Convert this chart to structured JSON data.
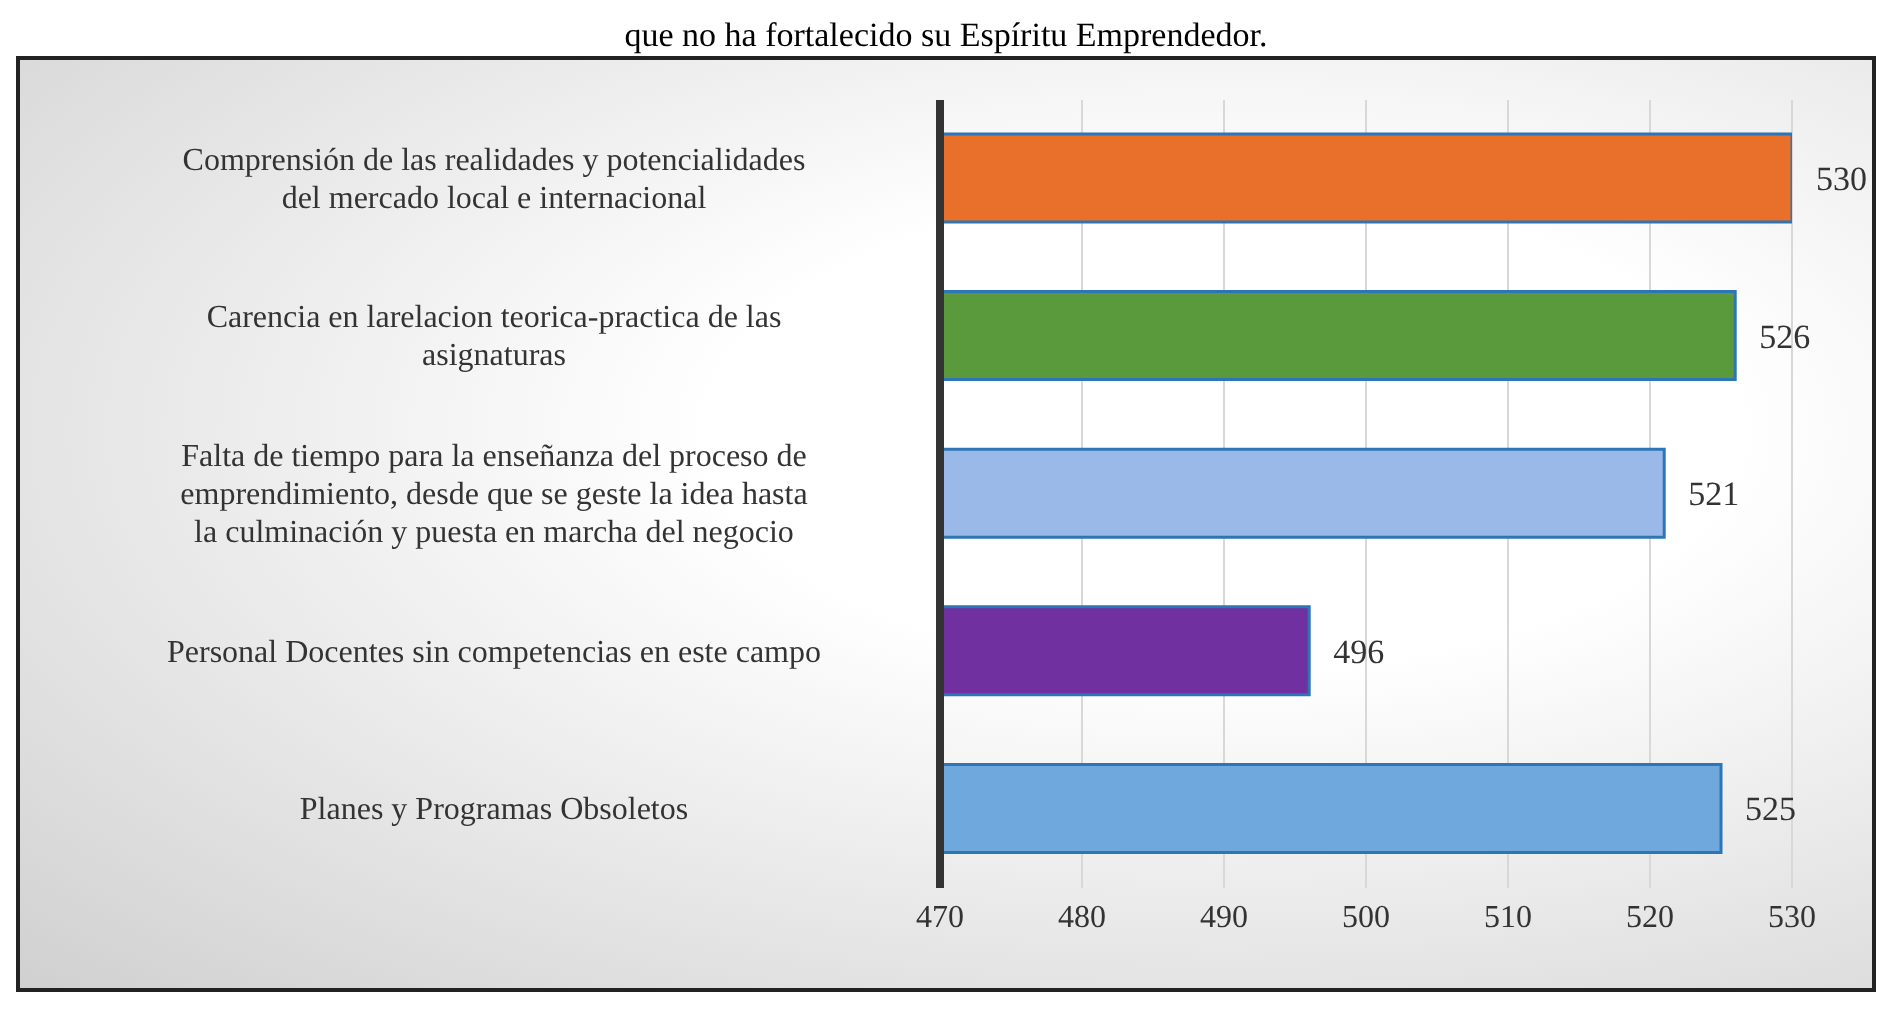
{
  "chart_data": {
    "type": "bar",
    "orientation": "horizontal",
    "title": "que no ha fortalecido su Espíritu Emprendedor.",
    "categories": [
      "Comprensión de las realidades y potencialidades del mercado local e internacional",
      "Carencia en larelacion teorica-practica de las asignaturas",
      "Falta de tiempo para la enseñanza del proceso de emprendimiento, desde que se geste la idea hasta la culminación y puesta en marcha del negocio",
      "Personal Docentes sin competencias en este campo",
      "Planes y Programas Obsoletos"
    ],
    "values": [
      530,
      526,
      521,
      496,
      525
    ],
    "colors": [
      "#e8702a",
      "#5a9a3c",
      "#9ab8e8",
      "#7030a0",
      "#6fa8dc"
    ],
    "xlim": [
      470,
      530
    ],
    "xticks": [
      470,
      480,
      490,
      500,
      510,
      520,
      530
    ],
    "grid": "x",
    "data_labels": true
  }
}
